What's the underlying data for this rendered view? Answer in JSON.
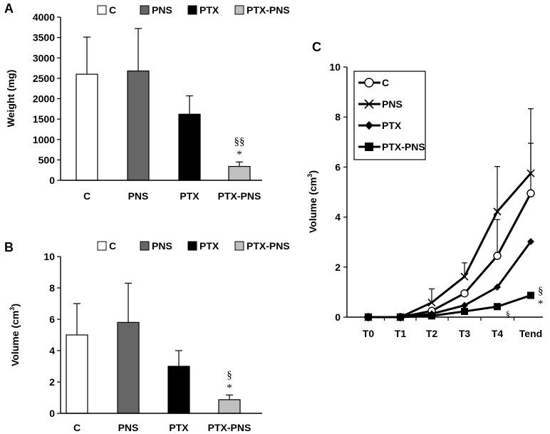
{
  "chart_data": [
    {
      "id": "A",
      "panel_label": "A",
      "type": "bar",
      "ylabel": "Weight (mg)",
      "ylim": [
        0,
        4000
      ],
      "yticks": [
        "0",
        "500",
        "1000",
        "1500",
        "2000",
        "2500",
        "3000",
        "3500",
        "4000"
      ],
      "ytick_values": [
        0,
        500,
        1000,
        1500,
        2000,
        2500,
        3000,
        3500,
        4000
      ],
      "categories": [
        "C",
        "PNS",
        "PTX",
        "PTX-PNS"
      ],
      "values": [
        2600,
        2680,
        1620,
        340
      ],
      "errors": [
        910,
        1040,
        450,
        110
      ],
      "colors": [
        "#ffffff",
        "#666666",
        "#000000",
        "#c0c0c0"
      ],
      "legend": [
        "C",
        "PNS",
        "PTX",
        "PTX-PNS"
      ],
      "annotations": [
        {
          "category": "PTX-PNS",
          "lines": [
            "§§",
            "*"
          ]
        }
      ]
    },
    {
      "id": "B",
      "panel_label": "B",
      "type": "bar",
      "ylabel": "Volume (cm",
      "ylabel_super": "3",
      "ylabel_close": ")",
      "ylim": [
        0,
        10
      ],
      "yticks": [
        "0",
        "2",
        "4",
        "6",
        "8",
        "10"
      ],
      "ytick_values": [
        0,
        2,
        4,
        6,
        8,
        10
      ],
      "categories": [
        "C",
        "PNS",
        "PTX",
        "PTX-PNS"
      ],
      "values": [
        5.0,
        5.8,
        3.0,
        0.87
      ],
      "errors": [
        2.0,
        2.5,
        1.0,
        0.3
      ],
      "colors": [
        "#ffffff",
        "#666666",
        "#000000",
        "#c0c0c0"
      ],
      "legend": [
        "C",
        "PNS",
        "PTX",
        "PTX-PNS"
      ],
      "annotations": [
        {
          "category": "PTX-PNS",
          "lines": [
            "§",
            "*"
          ]
        }
      ]
    },
    {
      "id": "C",
      "panel_label": "C",
      "type": "line",
      "ylabel": "Volume (cm",
      "ylabel_super": "3",
      "ylabel_close": ")",
      "ylim": [
        0,
        10
      ],
      "yticks": [
        "0",
        "2",
        "4",
        "6",
        "8",
        "10"
      ],
      "ytick_values": [
        0,
        2,
        4,
        6,
        8,
        10
      ],
      "x": [
        "T0",
        "T1",
        "T2",
        "T3",
        "T4",
        "Tend"
      ],
      "series": [
        {
          "name": "C",
          "marker": "circle",
          "values": [
            0,
            0,
            0.25,
            0.95,
            2.45,
            4.95
          ],
          "errors": [
            0,
            0,
            0,
            0,
            1.45,
            2.0
          ]
        },
        {
          "name": "PNS",
          "marker": "x",
          "values": [
            0,
            0,
            0.58,
            1.62,
            4.22,
            5.75
          ],
          "errors": [
            0,
            0,
            0.55,
            0.55,
            1.8,
            2.58
          ]
        },
        {
          "name": "PTX",
          "marker": "diamond",
          "values": [
            0,
            0,
            0.13,
            0.47,
            1.2,
            3.02
          ],
          "errors": [
            0,
            0,
            0,
            0,
            0,
            0
          ]
        },
        {
          "name": "PTX-PNS",
          "marker": "square",
          "values": [
            0,
            0,
            0.05,
            0.23,
            0.42,
            0.87
          ],
          "errors": [
            0,
            0,
            0,
            0,
            0,
            0
          ]
        }
      ],
      "annotations": [
        {
          "x": "T4",
          "series": "PTX-PNS",
          "text": "§"
        },
        {
          "x": "Tend",
          "series": "PTX-PNS",
          "text": "§"
        },
        {
          "x": "Tend",
          "series": "PTX-PNS",
          "text": "*"
        }
      ]
    }
  ]
}
